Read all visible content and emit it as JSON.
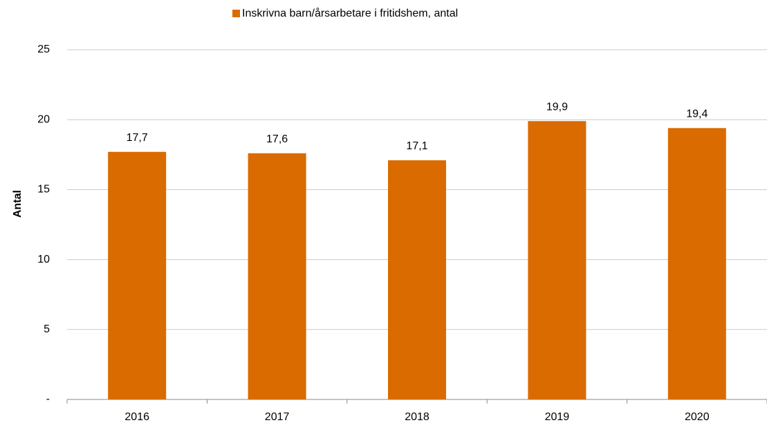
{
  "chart_data": {
    "type": "bar",
    "categories": [
      "2016",
      "2017",
      "2018",
      "2019",
      "2020"
    ],
    "series": [
      {
        "name": "Inskrivna barn/årsarbetare i fritidshem, antal",
        "color": "#d96b00",
        "values": [
          17.7,
          17.6,
          17.1,
          19.9,
          19.4
        ],
        "value_labels": [
          "17,7",
          "17,6",
          "17,1",
          "19,9",
          "19,4"
        ]
      }
    ],
    "y_label": "Antal",
    "ylim": [
      0,
      25
    ],
    "yticks": [
      {
        "value": 0,
        "label": "-"
      },
      5,
      10,
      15,
      20,
      25
    ],
    "grid": true,
    "legend": "top"
  }
}
